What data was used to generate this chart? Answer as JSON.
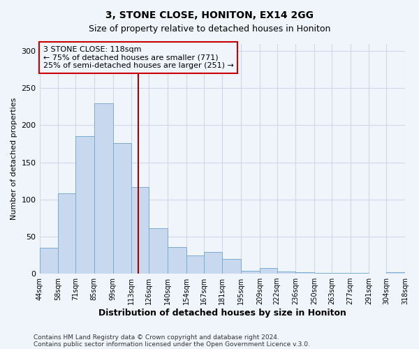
{
  "title": "3, STONE CLOSE, HONITON, EX14 2GG",
  "subtitle": "Size of property relative to detached houses in Honiton",
  "xlabel": "Distribution of detached houses by size in Honiton",
  "ylabel": "Number of detached properties",
  "bar_edges": [
    44,
    58,
    71,
    85,
    99,
    113,
    126,
    140,
    154,
    167,
    181,
    195,
    209,
    222,
    236,
    250,
    263,
    277,
    291,
    304,
    318
  ],
  "bar_heights": [
    35,
    108,
    185,
    230,
    176,
    117,
    61,
    36,
    25,
    29,
    20,
    4,
    8,
    3,
    2,
    1,
    1,
    1,
    0,
    2
  ],
  "tick_labels": [
    "44sqm",
    "58sqm",
    "71sqm",
    "85sqm",
    "99sqm",
    "113sqm",
    "126sqm",
    "140sqm",
    "154sqm",
    "167sqm",
    "181sqm",
    "195sqm",
    "209sqm",
    "222sqm",
    "236sqm",
    "250sqm",
    "263sqm",
    "277sqm",
    "291sqm",
    "304sqm",
    "318sqm"
  ],
  "bar_color": "#c8d8ee",
  "bar_edge_color": "#7aabcf",
  "vline_x": 118,
  "vline_color": "#aa0000",
  "annotation_line1": "3 STONE CLOSE: 118sqm",
  "annotation_line2": "← 75% of detached houses are smaller (771)",
  "annotation_line3": "25% of semi-detached houses are larger (251) →",
  "annotation_box_color": "#cc0000",
  "ylim": [
    0,
    310
  ],
  "yticks": [
    0,
    50,
    100,
    150,
    200,
    250,
    300
  ],
  "grid_color": "#d0d8e8",
  "background_color": "#f0f4fb",
  "footer1": "Contains HM Land Registry data © Crown copyright and database right 2024.",
  "footer2": "Contains public sector information licensed under the Open Government Licence v.3.0."
}
